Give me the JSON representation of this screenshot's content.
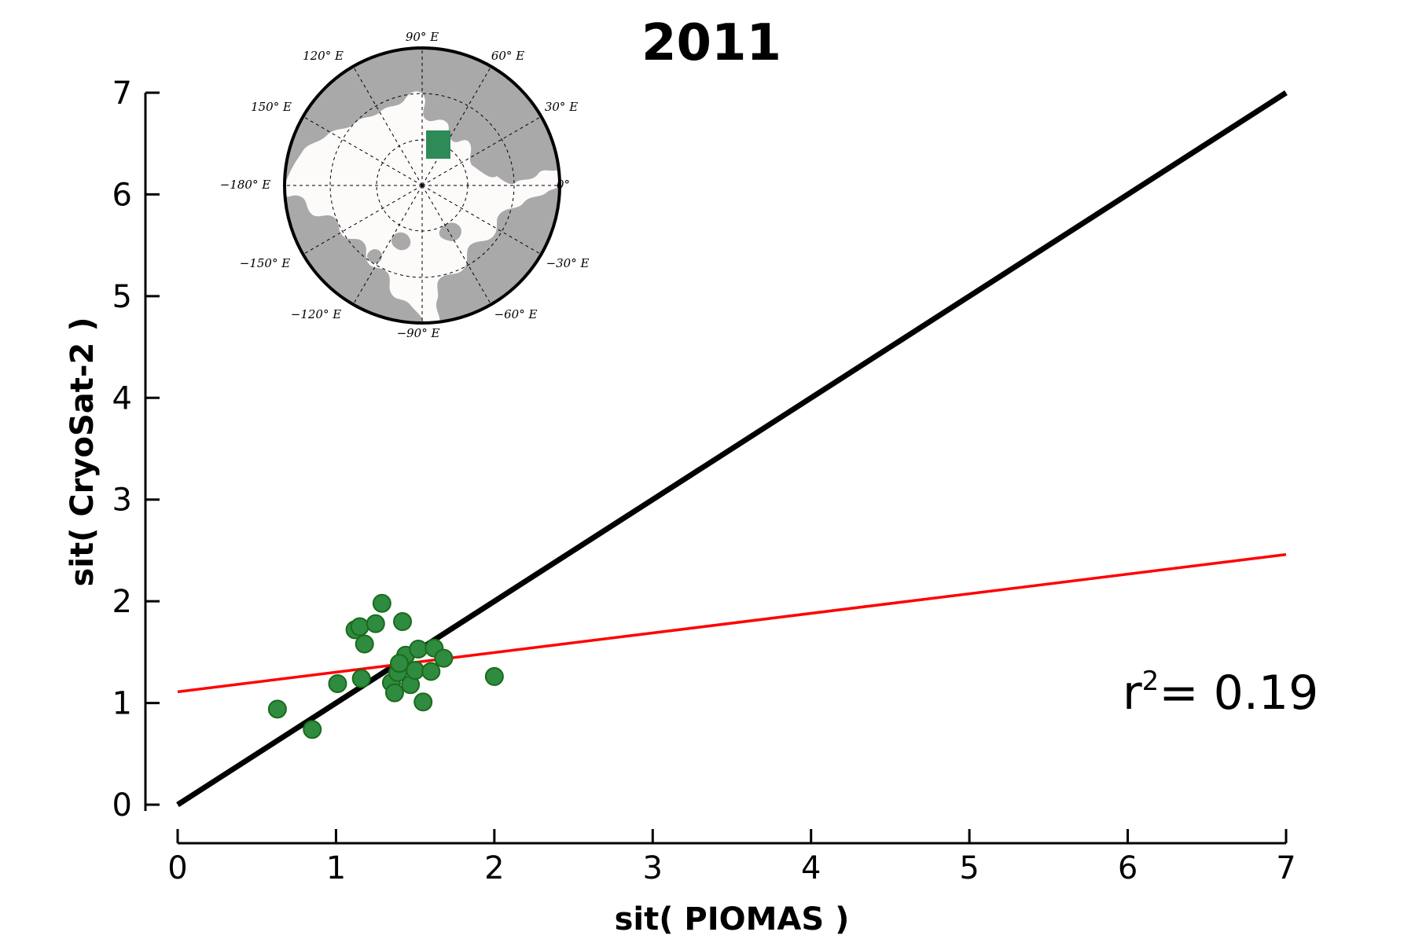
{
  "chart_data": {
    "type": "scatter",
    "title": "2011",
    "xlabel": "sit( PIOMAS )",
    "ylabel": "sit( CryoSat-2 )",
    "xlim": [
      0,
      7
    ],
    "ylim": [
      0,
      7
    ],
    "xticks": [
      "0",
      "1",
      "2",
      "3",
      "4",
      "5",
      "6",
      "7"
    ],
    "yticks": [
      "0",
      "1",
      "2",
      "3",
      "4",
      "5",
      "6",
      "7"
    ],
    "grid": false,
    "points": {
      "x": [
        0.63,
        0.85,
        1.01,
        1.12,
        1.15,
        1.16,
        1.18,
        1.25,
        1.29,
        1.35,
        1.37,
        1.39,
        1.42,
        1.44,
        1.47,
        1.5,
        1.52,
        1.55,
        1.6,
        1.62,
        1.68,
        2.0,
        1.4
      ],
      "y": [
        0.94,
        0.74,
        1.19,
        1.72,
        1.75,
        1.24,
        1.58,
        1.78,
        1.98,
        1.2,
        1.1,
        1.3,
        1.8,
        1.47,
        1.18,
        1.32,
        1.53,
        1.01,
        1.31,
        1.54,
        1.44,
        1.26,
        1.39
      ],
      "color": "#2e8b40",
      "edge_color": "#1a6b1a"
    },
    "identity_line": {
      "x": [
        0,
        7
      ],
      "y": [
        0,
        7
      ],
      "color": "#000000"
    },
    "fit_line": {
      "x": [
        0,
        7
      ],
      "y": [
        1.11,
        2.46
      ],
      "color": "#ff0000"
    },
    "annotation": {
      "base": "r",
      "sup": "2",
      "text": "= 0.19"
    }
  },
  "inset_map": {
    "labels": {
      "n90": "90° E",
      "n60": "60° E",
      "n120": "120° E",
      "n30": "30° E",
      "n150": "150° E",
      "n0": "0°",
      "n180": "−180° E",
      "nm30": "−30° E",
      "nm150": "−150° E",
      "nm60": "−60° E",
      "nm120": "−120° E",
      "nm90": "−90° E"
    },
    "ocean_color": "#fdfafa",
    "land_color": "#a9a9a9",
    "region_color": "#2e8b57"
  }
}
